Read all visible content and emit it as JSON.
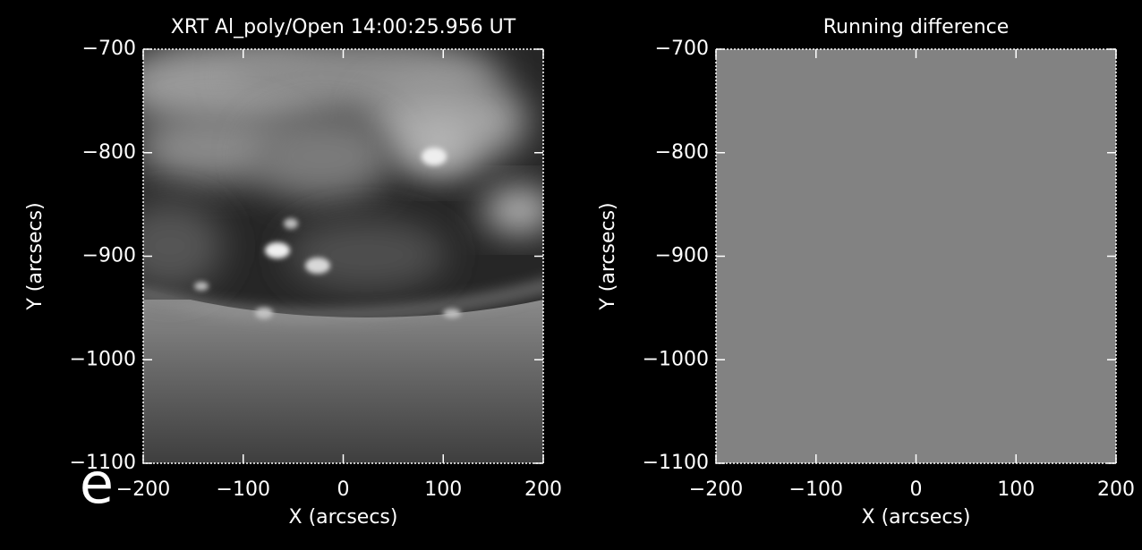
{
  "chart_data": [
    {
      "type": "image",
      "title": "XRT Al_poly/Open 14:00:25.956 UT",
      "xlabel": "X (arcsecs)",
      "ylabel": "Y (arcsecs)",
      "xlim": [
        -200,
        200
      ],
      "ylim": [
        -1100,
        -700
      ],
      "xticks": [
        {
          "value": -200,
          "label": "−200"
        },
        {
          "value": -100,
          "label": "−100"
        },
        0,
        100,
        200
      ],
      "yticks": [
        {
          "value": -700,
          "label": "−700"
        },
        {
          "value": -800,
          "label": "−800"
        },
        {
          "value": -900,
          "label": "−900"
        },
        {
          "value": -1000,
          "label": "−1000"
        },
        {
          "value": -1100,
          "label": "−1100"
        }
      ]
    },
    {
      "type": "image",
      "title": "Running difference",
      "xlabel": "X (arcsecs)",
      "ylabel": "Y (arcsecs)",
      "color": "#828282",
      "xlim": [
        -200,
        200
      ],
      "ylim": [
        -1100,
        -700
      ],
      "xticks": [
        {
          "value": -200,
          "label": "−200"
        },
        {
          "value": -100,
          "label": "−100"
        },
        0,
        100,
        200
      ],
      "yticks": [
        {
          "value": -700,
          "label": "−700"
        },
        {
          "value": -800,
          "label": "−800"
        },
        {
          "value": -900,
          "label": "−900"
        },
        {
          "value": -1000,
          "label": "−1000"
        },
        {
          "value": -1100,
          "label": "−1100"
        }
      ]
    }
  ],
  "annotation": "e"
}
